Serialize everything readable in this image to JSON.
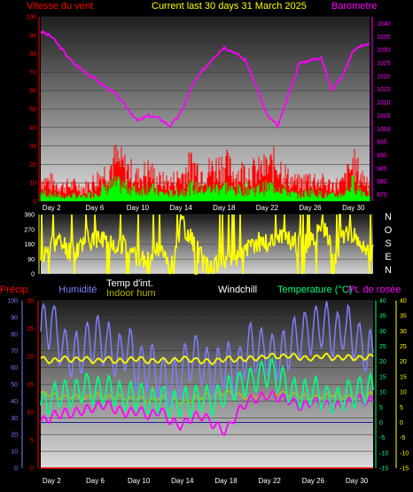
{
  "header": {
    "left_title": "Vitesse du vent",
    "center_title": "Current last 30 days 31 March 2025",
    "right_title": "Barometre"
  },
  "dir_letters": [
    "N",
    "O",
    "S",
    "E",
    "N"
  ],
  "legend": {
    "precip": "Précip.",
    "humidity": "Humidité",
    "temp_int": "Temp d'int.",
    "indoor_hum": "Indoor hum",
    "windchill": "Windchill",
    "temperature": "Temperature (°C)",
    "dewpoint": "Pt. de rosée"
  },
  "colors": {
    "wind_axis": "#ff0000",
    "gust": "#ff0000",
    "avg_wind": "#00ff00",
    "baro": "#ff00ff",
    "direction": "#ffff00",
    "humidity": "#7f7fff",
    "temp_int": "#ffff00",
    "indoor_hum": "#c0c000",
    "temperature": "#00ff7f",
    "dewpoint": "#ff00ff",
    "precip": "#ff0000",
    "title": "#ffff00",
    "white": "#ffffff"
  },
  "chart_data": [
    {
      "type": "line",
      "title": "Current last 30 days 31 March 2025",
      "x_ticks": [
        "Day 2",
        "Day 6",
        "Day 10",
        "Day 14",
        "Day 18",
        "Day 22",
        "Day 26",
        "Day 30"
      ],
      "y_left_ticks": [
        "0",
        "10",
        "20",
        "30",
        "40",
        "50",
        "60",
        "70",
        "80",
        "90",
        "100"
      ],
      "y_left_range": [
        0,
        100
      ],
      "y_right_ticks": [
        "975",
        "980",
        "985",
        "990",
        "995",
        "1000",
        "1005",
        "1010",
        "1015",
        "1020",
        "1025",
        "1030",
        "1035",
        "1040"
      ],
      "y_right_range": [
        972.5,
        1042.5
      ],
      "series": [
        {
          "name": "Barometre",
          "axis": "right",
          "days": [
            1,
            2,
            3,
            4,
            5,
            6,
            7,
            8,
            9,
            10,
            11,
            12,
            13,
            14,
            15,
            16,
            17,
            18,
            19,
            20,
            21,
            22,
            23,
            24,
            25,
            26,
            27,
            28,
            29,
            30,
            31
          ],
          "values": [
            1037,
            1035,
            1030,
            1025,
            1022,
            1019,
            1016,
            1013,
            1008,
            1003,
            1005,
            1004,
            1001,
            1006,
            1016,
            1022,
            1027,
            1031,
            1029,
            1026,
            1016,
            1005,
            1001,
            1013,
            1025,
            1026,
            1027,
            1015,
            1020,
            1030,
            1032
          ]
        },
        {
          "name": "Vitesse du vent",
          "axis": "left",
          "days": [
            1,
            2,
            3,
            4,
            5,
            6,
            7,
            8,
            9,
            10,
            11,
            12,
            13,
            14,
            15,
            16,
            17,
            18,
            19,
            20,
            21,
            22,
            23,
            24,
            25,
            26,
            27,
            28,
            29,
            30,
            31
          ],
          "gust_values": [
            15,
            13,
            10,
            11,
            9,
            14,
            20,
            28,
            22,
            16,
            21,
            14,
            13,
            17,
            25,
            20,
            22,
            26,
            18,
            21,
            20,
            23,
            26,
            15,
            12,
            16,
            13,
            11,
            12,
            25,
            15
          ],
          "avg_values": [
            6,
            5,
            3,
            4,
            3,
            6,
            9,
            12,
            10,
            7,
            10,
            6,
            5,
            7,
            10,
            8,
            9,
            11,
            7,
            9,
            8,
            10,
            11,
            6,
            4,
            7,
            5,
            4,
            5,
            13,
            6
          ]
        }
      ]
    },
    {
      "type": "line",
      "y_ticks": [
        "0",
        "90",
        "180",
        "270",
        "360"
      ],
      "y_range": [
        0,
        360
      ],
      "series": [
        {
          "name": "Direction",
          "days": [
            1,
            2,
            3,
            4,
            5,
            6,
            7,
            8,
            9,
            10,
            11,
            12,
            13,
            14,
            15,
            16,
            17,
            18,
            19,
            20,
            21,
            22,
            23,
            24,
            25,
            26,
            27,
            28,
            29,
            30,
            31
          ],
          "values": [
            60,
            200,
            180,
            120,
            210,
            220,
            200,
            190,
            170,
            90,
            60,
            200,
            40,
            300,
            200,
            60,
            50,
            80,
            100,
            140,
            200,
            180,
            230,
            200,
            170,
            200,
            280,
            60,
            250,
            200,
            120
          ]
        }
      ]
    },
    {
      "type": "line",
      "x_ticks": [
        "Day 2",
        "Day 6",
        "Day 10",
        "Day 14",
        "Day 18",
        "Day 22",
        "Day 26",
        "Day 30"
      ],
      "y_precip_ticks": [
        "0",
        "5",
        "10",
        "15",
        "20",
        "25",
        "30"
      ],
      "y_precip_range": [
        0,
        30
      ],
      "y_hum_ticks": [
        "0",
        "10",
        "20",
        "30",
        "40",
        "50",
        "60",
        "70",
        "80",
        "90",
        "100"
      ],
      "y_hum_range": [
        0,
        100
      ],
      "y_temp_ticks": [
        "-15",
        "-10",
        "-5",
        "0",
        "5",
        "10",
        "15",
        "20",
        "25",
        "30",
        "35",
        "40"
      ],
      "y_temp_range": [
        -15,
        40
      ],
      "series": [
        {
          "name": "Humidité",
          "days": [
            1,
            2,
            3,
            4,
            5,
            6,
            7,
            8,
            9,
            10,
            11,
            12,
            13,
            14,
            15,
            16,
            17,
            18,
            19,
            20,
            21,
            22,
            23,
            24,
            25,
            26,
            27,
            28,
            29,
            30,
            31
          ],
          "values": [
            82,
            88,
            72,
            65,
            70,
            78,
            74,
            66,
            72,
            58,
            62,
            55,
            50,
            58,
            68,
            60,
            56,
            62,
            55,
            72,
            70,
            68,
            66,
            73,
            80,
            82,
            86,
            78,
            84,
            76,
            68
          ]
        },
        {
          "name": "Temp d'int.",
          "days": [
            1,
            2,
            3,
            4,
            5,
            6,
            7,
            8,
            9,
            10,
            11,
            12,
            13,
            14,
            15,
            16,
            17,
            18,
            19,
            20,
            21,
            22,
            23,
            24,
            25,
            26,
            27,
            28,
            29,
            30,
            31
          ],
          "values": [
            21,
            20,
            21,
            20.5,
            21,
            20,
            21,
            20,
            20.5,
            21,
            20,
            20.5,
            20,
            21,
            20.5,
            20,
            20,
            21,
            20.5,
            21,
            21,
            22,
            21.5,
            22,
            21,
            21,
            22,
            21,
            21.5,
            21,
            21.5
          ]
        },
        {
          "name": "Indoor hum",
          "days": [
            1,
            2,
            3,
            4,
            5,
            6,
            7,
            8,
            9,
            10,
            11,
            12,
            13,
            14,
            15,
            16,
            17,
            18,
            19,
            20,
            21,
            22,
            23,
            24,
            25,
            26,
            27,
            28,
            29,
            30,
            31
          ],
          "values": [
            45,
            44,
            42,
            43,
            41,
            44,
            42,
            43,
            41,
            42,
            40,
            42,
            41,
            39,
            41,
            43,
            44,
            45,
            44,
            42,
            43,
            44,
            45,
            44,
            43,
            42,
            43,
            44,
            42,
            43,
            44
          ]
        },
        {
          "name": "Temperature (°C)",
          "days": [
            1,
            2,
            3,
            4,
            5,
            6,
            7,
            8,
            9,
            10,
            11,
            12,
            13,
            14,
            15,
            16,
            17,
            18,
            19,
            20,
            21,
            22,
            23,
            24,
            25,
            26,
            27,
            28,
            29,
            30,
            31
          ],
          "values": [
            5,
            8,
            10,
            9,
            12,
            10,
            11,
            9,
            8,
            9,
            6,
            8,
            6,
            7,
            7,
            8,
            7,
            10,
            12,
            13,
            15,
            17,
            14,
            10,
            9,
            11,
            8,
            7,
            9,
            10,
            11
          ]
        },
        {
          "name": "Pt. de rosée",
          "days": [
            1,
            2,
            3,
            4,
            5,
            6,
            7,
            8,
            9,
            10,
            11,
            12,
            13,
            14,
            15,
            16,
            17,
            18,
            19,
            20,
            21,
            22,
            23,
            24,
            25,
            26,
            27,
            28,
            29,
            30,
            31
          ],
          "values": [
            0,
            2,
            3,
            3,
            4,
            5,
            6,
            4,
            3,
            4,
            2,
            4,
            0,
            -1,
            2,
            2,
            -1,
            -3,
            3,
            7,
            8,
            9,
            8,
            7,
            5,
            7,
            6,
            5,
            6,
            8,
            7
          ]
        },
        {
          "name": "Précip.",
          "days": [
            1,
            31
          ],
          "values": [
            0,
            0
          ]
        }
      ]
    }
  ]
}
